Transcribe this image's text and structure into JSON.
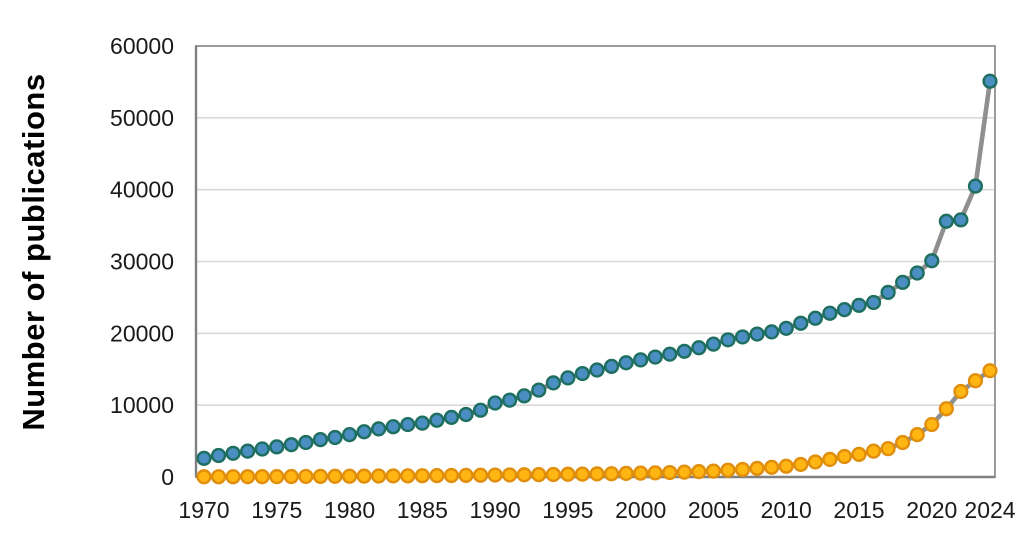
{
  "chart_data": {
    "type": "line",
    "title": "",
    "xlabel": "",
    "ylabel": "Number of publications",
    "ylim": [
      0,
      60000
    ],
    "grid": true,
    "legend_position": "none",
    "x": [
      1970,
      1971,
      1972,
      1973,
      1974,
      1975,
      1976,
      1977,
      1978,
      1979,
      1980,
      1981,
      1982,
      1983,
      1984,
      1985,
      1986,
      1987,
      1988,
      1989,
      1990,
      1991,
      1992,
      1993,
      1994,
      1995,
      1996,
      1997,
      1998,
      1999,
      2000,
      2001,
      2002,
      2003,
      2004,
      2005,
      2006,
      2007,
      2008,
      2009,
      2010,
      2011,
      2012,
      2013,
      2014,
      2015,
      2016,
      2017,
      2018,
      2019,
      2020,
      2021,
      2022,
      2023,
      2024
    ],
    "x_ticks": [
      1970,
      1975,
      1980,
      1985,
      1990,
      1995,
      2000,
      2005,
      2010,
      2015,
      2020,
      2024
    ],
    "y_ticks": [
      0,
      10000,
      20000,
      30000,
      40000,
      50000,
      60000
    ],
    "series": [
      {
        "name": "blue",
        "marker_fill": "#4A8EC2",
        "marker_stroke": "#1E6F60",
        "line_color": "#8F8F8F",
        "values": [
          2600,
          3000,
          3300,
          3600,
          3900,
          4200,
          4500,
          4800,
          5200,
          5500,
          5900,
          6300,
          6700,
          7000,
          7300,
          7500,
          7900,
          8300,
          8700,
          9300,
          10300,
          10700,
          11300,
          12100,
          13100,
          13800,
          14400,
          14900,
          15400,
          15900,
          16300,
          16700,
          17100,
          17500,
          18000,
          18500,
          19100,
          19500,
          19900,
          20200,
          20700,
          21400,
          22100,
          22800,
          23300,
          23900,
          24300,
          25700,
          27100,
          28400,
          30100,
          35600,
          35800,
          40500,
          55100
        ]
      },
      {
        "name": "orange",
        "marker_fill": "#FFB612",
        "marker_stroke": "#E08E0B",
        "line_color": "#8F8F8F",
        "values": [
          30,
          35,
          40,
          45,
          50,
          60,
          70,
          80,
          90,
          100,
          110,
          120,
          140,
          150,
          160,
          180,
          190,
          210,
          230,
          250,
          270,
          290,
          310,
          330,
          350,
          380,
          400,
          430,
          460,
          500,
          540,
          580,
          620,
          680,
          750,
          820,
          950,
          1050,
          1200,
          1350,
          1500,
          1750,
          2100,
          2450,
          2850,
          3150,
          3600,
          3950,
          4800,
          5900,
          7300,
          9500,
          11900,
          13400,
          14800
        ]
      }
    ],
    "colors": {
      "grid": "#D9D9D9",
      "plot_border": "#9B9B9B",
      "axis": "#808080",
      "tick_text": "#1A1A1A",
      "ylabel_text": "#000000",
      "background": "#FFFFFF"
    }
  }
}
